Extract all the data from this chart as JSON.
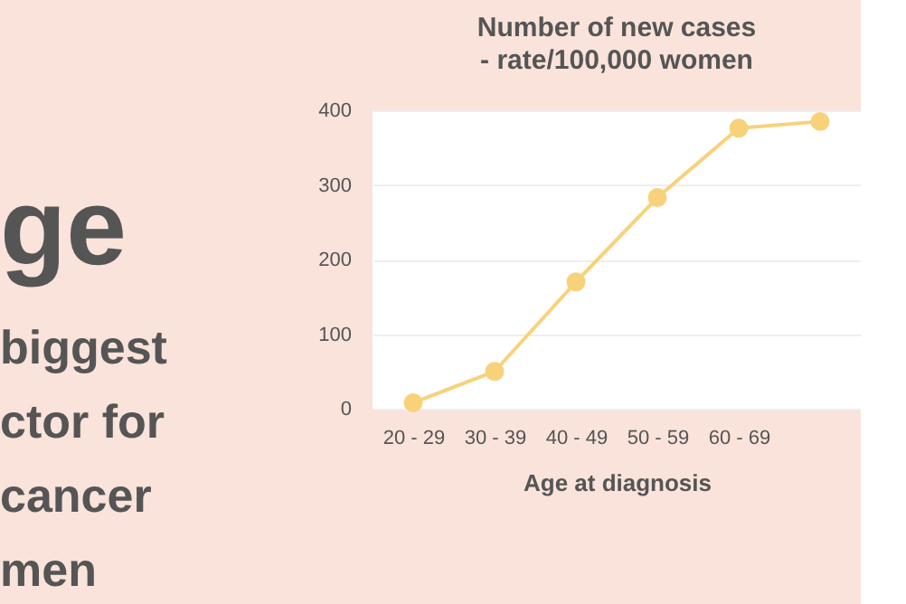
{
  "chart_data": {
    "type": "line",
    "title": "Number of new cases",
    "subtitle": "- rate/100,000 women",
    "xlabel": "Age at diagnosis",
    "categories": [
      "20 - 29",
      "30 - 39",
      "40 - 49",
      "50 - 59",
      "60 - 69",
      null
    ],
    "series": [
      {
        "color": "#f8d27a",
        "values": [
          8,
          50,
          170,
          283,
          376,
          385
        ]
      }
    ],
    "ylim": [
      0,
      400
    ],
    "yticks": [
      0,
      100,
      200,
      300,
      400
    ],
    "grid": "y",
    "marker": "circle",
    "line_style": "solid",
    "legend": false,
    "annotations": [
      "ge",
      "biggest",
      "ctor for",
      "cancer",
      "men"
    ]
  }
}
